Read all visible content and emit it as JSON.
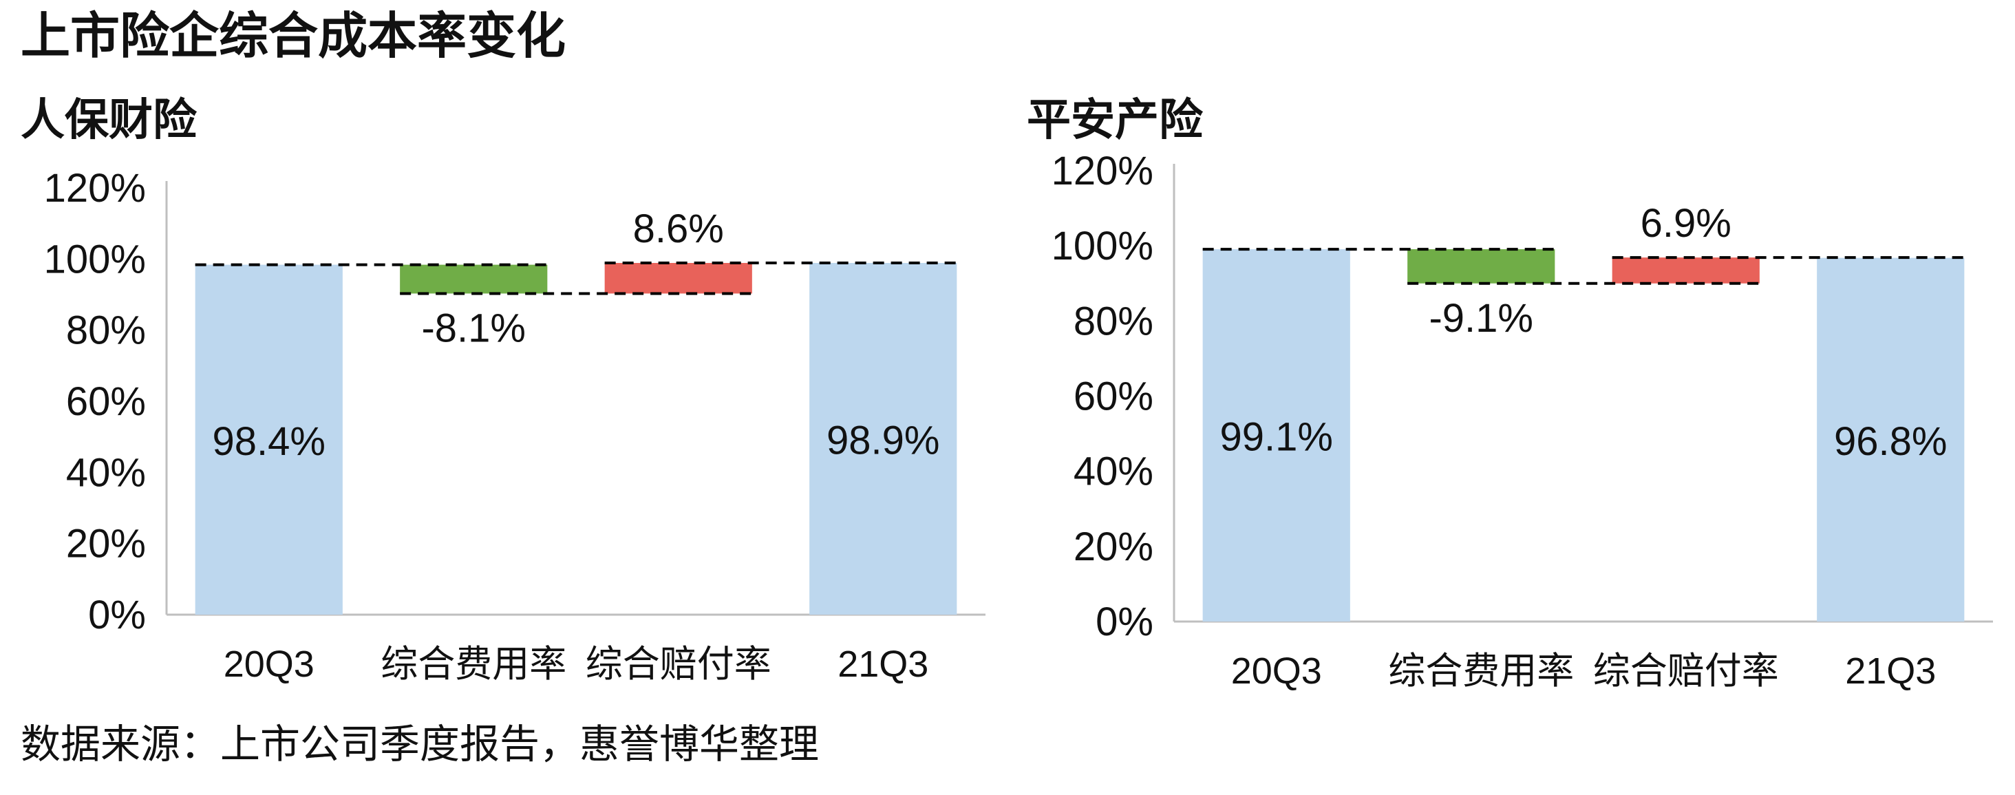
{
  "main_title": "上市险企综合成本率变化",
  "source_note": "数据来源：上市公司季度报告，惠誉博华整理",
  "colors": {
    "total": "#bdd7ee",
    "decrease": "#70ad47",
    "increase": "#e8625a",
    "axis": "#bfbfbf",
    "connector": "#000000"
  },
  "chart_data": [
    {
      "type": "bar",
      "subtype": "waterfall",
      "title": "人保财险",
      "categories": [
        "20Q3",
        "综合费用率",
        "综合赔付率",
        "21Q3"
      ],
      "values": [
        98.4,
        -8.1,
        8.6,
        98.9
      ],
      "data_labels": [
        "98.4%",
        "-8.1%",
        "8.6%",
        "98.9%"
      ],
      "ylim": [
        0,
        120
      ],
      "yticks": [
        "0%",
        "20%",
        "40%",
        "60%",
        "80%",
        "100%",
        "120%"
      ],
      "grid": false,
      "legend": "none"
    },
    {
      "type": "bar",
      "subtype": "waterfall",
      "title": "平安产险",
      "categories": [
        "20Q3",
        "综合费用率",
        "综合赔付率",
        "21Q3"
      ],
      "values": [
        99.1,
        -9.1,
        6.9,
        96.8
      ],
      "data_labels": [
        "99.1%",
        "-9.1%",
        "6.9%",
        "96.8%"
      ],
      "ylim": [
        0,
        120
      ],
      "yticks": [
        "0%",
        "20%",
        "40%",
        "60%",
        "80%",
        "100%",
        "120%"
      ],
      "grid": false,
      "legend": "none"
    }
  ]
}
